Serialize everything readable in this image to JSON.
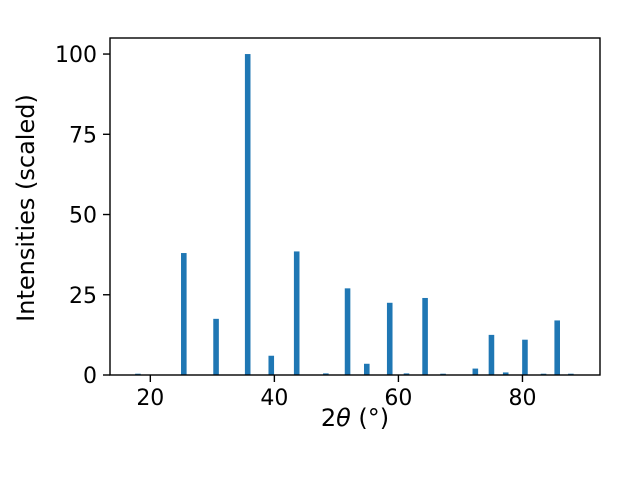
{
  "chart_data": {
    "type": "bar",
    "x": [
      18.0,
      25.4,
      30.6,
      35.7,
      39.5,
      43.6,
      48.3,
      51.8,
      54.9,
      58.6,
      61.3,
      64.3,
      67.2,
      72.4,
      75.0,
      77.3,
      80.4,
      83.4,
      85.6,
      87.8
    ],
    "values": [
      0.4,
      38,
      17.5,
      100,
      6,
      38.5,
      0.5,
      27,
      3.5,
      22.5,
      0.5,
      24,
      0.4,
      2,
      12.5,
      0.8,
      11,
      0.4,
      17,
      0.4
    ],
    "title": "",
    "xlabel": "2θ (°)",
    "xlabel_parts": {
      "num": "2",
      "sym": "θ",
      "unit": " (°)"
    },
    "ylabel": "Intensities (scaled)",
    "xlim": [
      13.5,
      92.5
    ],
    "ylim": [
      0,
      105
    ],
    "xticks": [
      20,
      40,
      60,
      80
    ],
    "yticks": [
      0,
      25,
      50,
      75,
      100
    ],
    "bar_color": "#1f77b4",
    "bar_width_deg": 0.9,
    "axis_color": "#000000",
    "grid": false,
    "legend": null
  }
}
